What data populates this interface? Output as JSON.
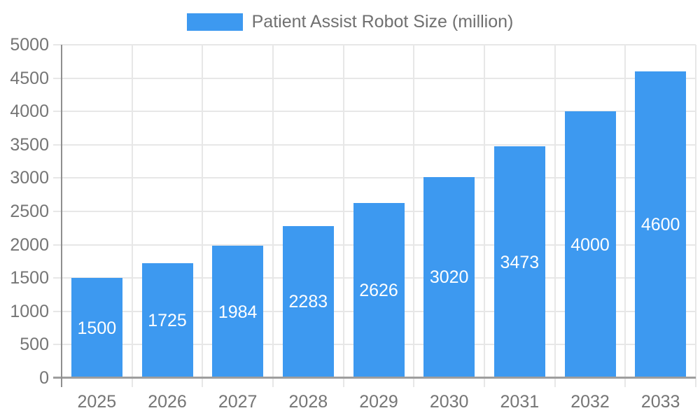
{
  "chart_data": {
    "type": "bar",
    "title": "Patient Assist Robot Size (million)",
    "categories": [
      "2025",
      "2026",
      "2027",
      "2028",
      "2029",
      "2030",
      "2031",
      "2032",
      "2033"
    ],
    "series": [
      {
        "name": "Patient Assist Robot Size (million)",
        "values": [
          1500,
          1725,
          1984,
          2283,
          2626,
          3020,
          3473,
          4000,
          4600
        ]
      }
    ],
    "xlabel": "",
    "ylabel": "",
    "ylim": [
      0,
      5000
    ],
    "ytick_step": 500,
    "grid": true,
    "legend_position": "top-center",
    "value_labels": "inside-center",
    "colors": {
      "bar": "#3D99F0",
      "value_label": "#FFFFFF",
      "axis_text": "#757575",
      "legend_text": "#707070",
      "gridline": "#E7E7E7",
      "axis_line": "#8F8F8F",
      "baseline": "#9E9E9E"
    }
  }
}
